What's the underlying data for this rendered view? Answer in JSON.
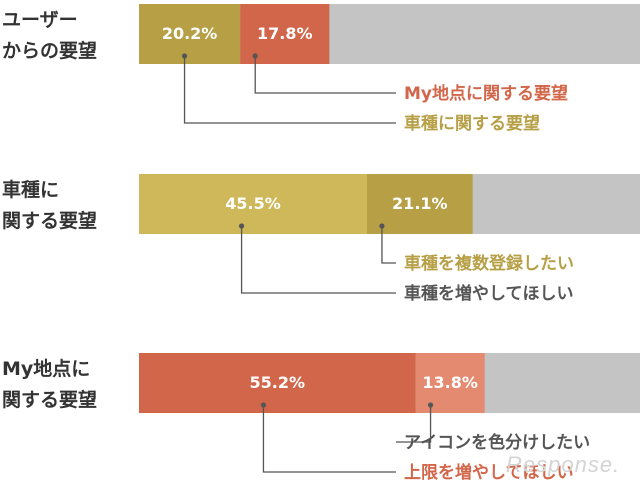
{
  "colors": {
    "olive": "#b69f45",
    "yellow": "#cfb859",
    "red": "#d2664a",
    "salmon": "#e48a70",
    "gray": "#c4c4c4",
    "red_text": "#d2664a",
    "olive_text": "#b69f45",
    "gray_text": "#555555"
  },
  "chart_data": {
    "type": "bar",
    "orientation": "horizontal-stacked",
    "xlim": [
      0,
      100
    ],
    "rows": [
      {
        "label_lines": [
          "ユーザー",
          "からの要望"
        ],
        "segments": [
          {
            "value": 20.2,
            "label": "20.2%",
            "color": "#b69f45"
          },
          {
            "value": 17.8,
            "label": "17.8%",
            "color": "#d2664a"
          }
        ],
        "callouts": [
          {
            "text": "My地点に関する要望",
            "segment": 1,
            "color": "#d2664a"
          },
          {
            "text": "車種に関する要望",
            "segment": 0,
            "color": "#b69f45"
          }
        ]
      },
      {
        "label_lines": [
          "車種に",
          "関する要望"
        ],
        "segments": [
          {
            "value": 45.5,
            "label": "45.5%",
            "color": "#cfb859"
          },
          {
            "value": 21.1,
            "label": "21.1%",
            "color": "#b69f45"
          }
        ],
        "callouts": [
          {
            "text": "車種を複数登録したい",
            "segment": 1,
            "color": "#b69f45"
          },
          {
            "text": "車種を増やしてほしい",
            "segment": 0,
            "color": "#555555"
          }
        ]
      },
      {
        "label_lines": [
          "My地点に",
          "関する要望"
        ],
        "segments": [
          {
            "value": 55.2,
            "label": "55.2%",
            "color": "#d2664a"
          },
          {
            "value": 13.8,
            "label": "13.8%",
            "color": "#e48a70"
          }
        ],
        "callouts": [
          {
            "text": "アイコンを色分けしたい",
            "segment": 1,
            "color": "#555555"
          },
          {
            "text": "上限を増やしてほしい",
            "segment": 0,
            "color": "#d2664a"
          }
        ]
      }
    ]
  },
  "watermark": "Response."
}
